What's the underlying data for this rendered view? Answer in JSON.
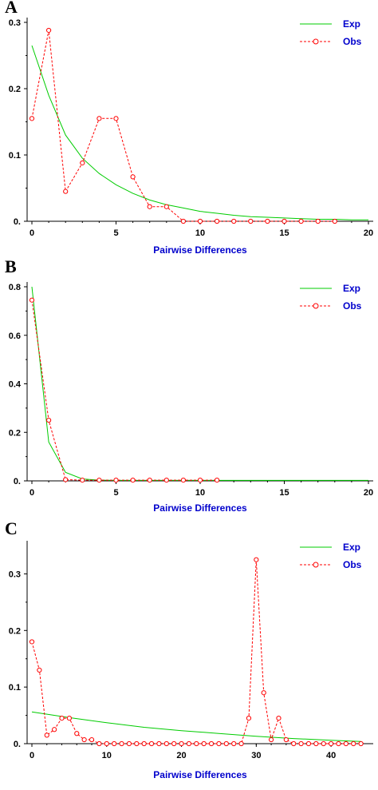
{
  "chart_data": [
    {
      "type": "line",
      "panel_label": "A",
      "xlabel": "Pairwise Differences",
      "ylabel": "",
      "xlim": [
        0,
        20
      ],
      "ylim": [
        0,
        0.3
      ],
      "xticks": [
        0,
        5,
        10,
        15,
        20
      ],
      "yticks": [
        0,
        0.1,
        0.2,
        0.3
      ],
      "ytick_labels": [
        "0.",
        "0.1",
        "0.2",
        "0.3"
      ],
      "legend_position": "top-right",
      "grid": false,
      "series": [
        {
          "name": "Exp",
          "color": "#00cc00",
          "style": "solid",
          "x": [
            0,
            1,
            2,
            3,
            4,
            5,
            6,
            7,
            8,
            9,
            10,
            11,
            12,
            13,
            14,
            15,
            16,
            17,
            18,
            19,
            20
          ],
          "y": [
            0.265,
            0.19,
            0.13,
            0.095,
            0.072,
            0.055,
            0.042,
            0.032,
            0.025,
            0.02,
            0.015,
            0.012,
            0.009,
            0.007,
            0.006,
            0.005,
            0.004,
            0.003,
            0.003,
            0.002,
            0.002
          ]
        },
        {
          "name": "Obs",
          "color": "#ff0000",
          "style": "dashed",
          "marker": "circle",
          "x": [
            0,
            1,
            2,
            3,
            4,
            5,
            6,
            7,
            8,
            9,
            10,
            11,
            12,
            13,
            14,
            15,
            16,
            17,
            18
          ],
          "y": [
            0.155,
            0.288,
            0.045,
            0.088,
            0.155,
            0.155,
            0.067,
            0.022,
            0.022,
            0.0,
            0.0,
            0.0,
            0.0,
            0.0,
            0.0,
            0.0,
            0.0,
            0.0,
            0.0
          ]
        }
      ]
    },
    {
      "type": "line",
      "panel_label": "B",
      "xlabel": "Pairwise Differences",
      "ylabel": "",
      "xlim": [
        0,
        20
      ],
      "ylim": [
        0,
        0.8
      ],
      "xticks": [
        0,
        5,
        10,
        15,
        20
      ],
      "yticks": [
        0,
        0.2,
        0.4,
        0.6,
        0.8
      ],
      "ytick_labels": [
        "0.",
        "0.2",
        "0.4",
        "0.6",
        "0.8"
      ],
      "legend_position": "top-right",
      "grid": false,
      "series": [
        {
          "name": "Exp",
          "color": "#00cc00",
          "style": "solid",
          "x": [
            0,
            1,
            2,
            3,
            4,
            5,
            6,
            7,
            8,
            9,
            10,
            11,
            12,
            13,
            14,
            15,
            16,
            17,
            18,
            19,
            20
          ],
          "y": [
            0.8,
            0.16,
            0.035,
            0.008,
            0.003,
            0.002,
            0.002,
            0.002,
            0.002,
            0.002,
            0.002,
            0.002,
            0.002,
            0.002,
            0.002,
            0.002,
            0.002,
            0.002,
            0.002,
            0.002,
            0.002
          ]
        },
        {
          "name": "Obs",
          "color": "#ff0000",
          "style": "dashed",
          "marker": "circle",
          "x": [
            0,
            1,
            2,
            3,
            4,
            5,
            6,
            7,
            8,
            9,
            10,
            11
          ],
          "y": [
            0.745,
            0.25,
            0.005,
            0.003,
            0.003,
            0.003,
            0.003,
            0.003,
            0.003,
            0.003,
            0.003,
            0.003
          ]
        }
      ]
    },
    {
      "type": "line",
      "panel_label": "C",
      "xlabel": "Pairwise Differences",
      "ylabel": "",
      "xlim": [
        0,
        45
      ],
      "ylim": [
        0,
        0.35
      ],
      "xticks": [
        0,
        10,
        20,
        30,
        40
      ],
      "yticks": [
        0,
        0.1,
        0.2,
        0.3
      ],
      "ytick_labels": [
        "0.",
        "0.1",
        "0.2",
        "0.3"
      ],
      "legend_position": "top-right",
      "grid": false,
      "series": [
        {
          "name": "Exp",
          "color": "#00cc00",
          "style": "solid",
          "x": [
            0,
            5,
            10,
            15,
            20,
            25,
            30,
            35,
            40,
            44
          ],
          "y": [
            0.056,
            0.046,
            0.037,
            0.029,
            0.023,
            0.018,
            0.013,
            0.009,
            0.006,
            0.004
          ]
        },
        {
          "name": "Obs",
          "color": "#ff0000",
          "style": "dashed",
          "marker": "circle",
          "x": [
            0,
            1,
            2,
            3,
            4,
            5,
            6,
            7,
            8,
            9,
            10,
            11,
            12,
            13,
            14,
            15,
            16,
            17,
            18,
            19,
            20,
            21,
            22,
            23,
            24,
            25,
            26,
            27,
            28,
            29,
            30,
            31,
            32,
            33,
            34,
            35,
            36,
            37,
            38,
            39,
            40,
            41,
            42,
            43,
            44
          ],
          "y": [
            0.18,
            0.13,
            0.015,
            0.025,
            0.045,
            0.045,
            0.018,
            0.007,
            0.007,
            0.0,
            0.0,
            0.0,
            0.0,
            0.0,
            0.0,
            0.0,
            0.0,
            0.0,
            0.0,
            0.0,
            0.0,
            0.0,
            0.0,
            0.0,
            0.0,
            0.0,
            0.0,
            0.0,
            0.0,
            0.045,
            0.325,
            0.09,
            0.007,
            0.045,
            0.007,
            0.0,
            0.0,
            0.0,
            0.0,
            0.0,
            0.0,
            0.0,
            0.0,
            0.0,
            0.0
          ]
        }
      ]
    }
  ]
}
